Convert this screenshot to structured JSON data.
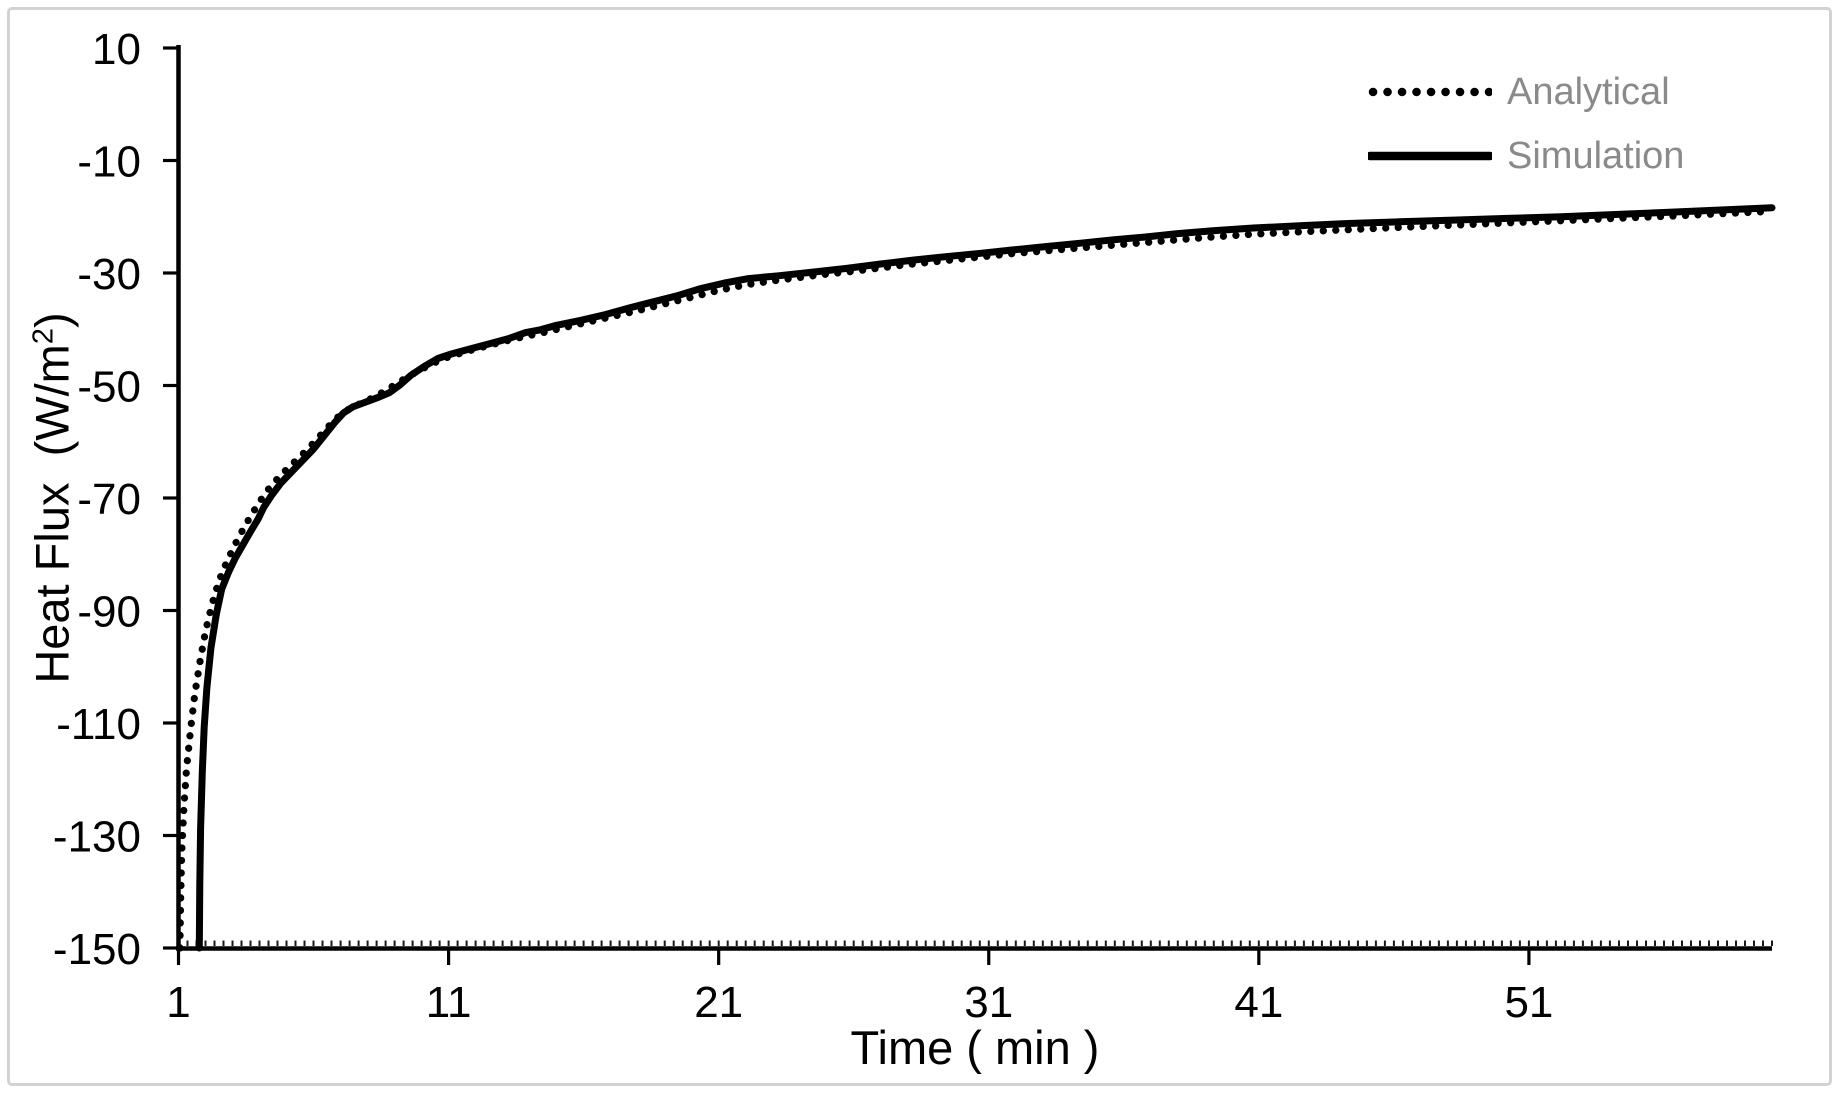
{
  "colors": {
    "line": "#000000",
    "axis": "#000000",
    "minor_tick": "#1a1a1a",
    "tick_label": "#000000",
    "legend_text": "#8a8a8a",
    "border": "#d2d2d2",
    "background": "#ffffff"
  },
  "chart_data": {
    "type": "line",
    "title": "",
    "xlabel": "Time ( min )",
    "ylabel": "Heat Flux (W/m²)",
    "ylabel_parts": {
      "prefix": "Heat Flux  (W/m",
      "sup": "2",
      "suffix": ")"
    },
    "xlim": [
      1,
      60
    ],
    "ylim": [
      -150,
      10
    ],
    "x_ticks": [
      1,
      11,
      21,
      31,
      41,
      51
    ],
    "y_ticks": [
      10,
      -10,
      -30,
      -50,
      -70,
      -90,
      -110,
      -130,
      -150
    ],
    "grid": false,
    "legend_position": "top-right",
    "series": [
      {
        "name": "Analytical",
        "style": "dotted",
        "color": "#000000",
        "points": [
          [
            1.05,
            -150
          ],
          [
            1.08,
            -141
          ],
          [
            1.12,
            -133
          ],
          [
            1.2,
            -125
          ],
          [
            1.3,
            -118
          ],
          [
            1.45,
            -111
          ],
          [
            1.6,
            -105
          ],
          [
            1.8,
            -99
          ],
          [
            2.0,
            -93.7
          ],
          [
            2.25,
            -88.7
          ],
          [
            2.5,
            -84.7
          ],
          [
            2.8,
            -81.2
          ],
          [
            3.1,
            -78.2
          ],
          [
            3.4,
            -75.5
          ],
          [
            3.7,
            -73.0
          ],
          [
            4.0,
            -70.7
          ],
          [
            4.35,
            -68.3
          ],
          [
            4.75,
            -66.1
          ],
          [
            5.2,
            -64.0
          ],
          [
            5.6,
            -62.2
          ],
          [
            6.0,
            -60.2
          ],
          [
            6.4,
            -58.1
          ],
          [
            6.8,
            -56.0
          ],
          [
            7.2,
            -54.5
          ],
          [
            7.6,
            -53.5
          ],
          [
            8.1,
            -52.4
          ],
          [
            8.6,
            -51.1
          ],
          [
            9.1,
            -49.6
          ],
          [
            9.5,
            -48.4
          ],
          [
            10,
            -47.1
          ],
          [
            10.5,
            -45.9
          ],
          [
            11,
            -44.9
          ],
          [
            11.7,
            -43.9
          ],
          [
            12.4,
            -43.0
          ],
          [
            13.1,
            -42.1
          ],
          [
            13.8,
            -41.3
          ],
          [
            14.5,
            -40.6
          ],
          [
            15.2,
            -39.8
          ],
          [
            16,
            -38.9
          ],
          [
            17,
            -37.8
          ],
          [
            18,
            -36.7
          ],
          [
            19,
            -35.5
          ],
          [
            20,
            -34.3
          ],
          [
            21,
            -33.1
          ],
          [
            22,
            -32.1
          ],
          [
            23,
            -31.4
          ],
          [
            24,
            -30.8
          ],
          [
            25,
            -30.2
          ],
          [
            26,
            -29.7
          ],
          [
            27,
            -29.1
          ],
          [
            28,
            -28.5
          ],
          [
            29,
            -28.0
          ],
          [
            30,
            -27.5
          ],
          [
            31,
            -27.0
          ],
          [
            32,
            -26.5
          ],
          [
            33,
            -26.1
          ],
          [
            34,
            -25.7
          ],
          [
            35,
            -25.3
          ],
          [
            36,
            -24.9
          ],
          [
            37,
            -24.5
          ],
          [
            38,
            -24.1
          ],
          [
            39.3,
            -23.6
          ],
          [
            40.8,
            -23.1
          ],
          [
            42.5,
            -22.7
          ],
          [
            44.3,
            -22.3
          ],
          [
            46.2,
            -21.9
          ],
          [
            48.2,
            -21.5
          ],
          [
            50.2,
            -21.1
          ],
          [
            52.2,
            -20.7
          ],
          [
            54.2,
            -20.3
          ],
          [
            56.2,
            -19.9
          ],
          [
            58,
            -19.5
          ],
          [
            59.7,
            -19.1
          ]
        ]
      },
      {
        "name": "Simulation",
        "style": "solid",
        "color": "#000000",
        "points": [
          [
            1.77,
            -150
          ],
          [
            1.79,
            -138.5
          ],
          [
            1.82,
            -128.7
          ],
          [
            1.88,
            -118.7
          ],
          [
            1.95,
            -110.7
          ],
          [
            2.05,
            -103.7
          ],
          [
            2.2,
            -96.7
          ],
          [
            2.4,
            -90.7
          ],
          [
            2.6,
            -86.2
          ],
          [
            2.85,
            -83.2
          ],
          [
            3.1,
            -80.7
          ],
          [
            3.4,
            -78.2
          ],
          [
            3.7,
            -75.7
          ],
          [
            3.95,
            -73.7
          ],
          [
            4.15,
            -71.7
          ],
          [
            4.45,
            -69.5
          ],
          [
            4.8,
            -67.3
          ],
          [
            5.2,
            -65.3
          ],
          [
            5.6,
            -63.3
          ],
          [
            6.0,
            -61.3
          ],
          [
            6.4,
            -58.9
          ],
          [
            6.8,
            -56.5
          ],
          [
            7.1,
            -54.9
          ],
          [
            7.45,
            -53.8
          ],
          [
            7.9,
            -53.0
          ],
          [
            8.4,
            -52.1
          ],
          [
            8.8,
            -51.3
          ],
          [
            9.2,
            -49.9
          ],
          [
            9.6,
            -48.2
          ],
          [
            10.1,
            -46.6
          ],
          [
            10.6,
            -45.2
          ],
          [
            11.1,
            -44.4
          ],
          [
            11.8,
            -43.5
          ],
          [
            12.5,
            -42.6
          ],
          [
            13.2,
            -41.7
          ],
          [
            13.85,
            -40.6
          ],
          [
            14.4,
            -40.1
          ],
          [
            15,
            -39.3
          ],
          [
            15.9,
            -38.4
          ],
          [
            16.8,
            -37.4
          ],
          [
            17.7,
            -36.2
          ],
          [
            18.6,
            -35.1
          ],
          [
            19.5,
            -34.0
          ],
          [
            20.3,
            -32.8
          ],
          [
            21.2,
            -31.8
          ],
          [
            22.1,
            -31.0
          ],
          [
            23.2,
            -30.5
          ],
          [
            24.4,
            -29.9
          ],
          [
            25.7,
            -29.2
          ],
          [
            27,
            -28.4
          ],
          [
            28.2,
            -27.7
          ],
          [
            29.4,
            -27.1
          ],
          [
            30.7,
            -26.5
          ],
          [
            31.9,
            -25.9
          ],
          [
            33.1,
            -25.3
          ],
          [
            34.4,
            -24.7
          ],
          [
            35.6,
            -24.1
          ],
          [
            36.8,
            -23.6
          ],
          [
            38,
            -23.0
          ],
          [
            39.3,
            -22.5
          ],
          [
            40.8,
            -22.0
          ],
          [
            42.5,
            -21.6
          ],
          [
            44.3,
            -21.2
          ],
          [
            46.2,
            -20.9
          ],
          [
            48.2,
            -20.6
          ],
          [
            50.2,
            -20.3
          ],
          [
            52.2,
            -20.0
          ],
          [
            54.2,
            -19.6
          ],
          [
            56.2,
            -19.2
          ],
          [
            58.1,
            -18.8
          ],
          [
            60,
            -18.4
          ]
        ]
      }
    ]
  }
}
